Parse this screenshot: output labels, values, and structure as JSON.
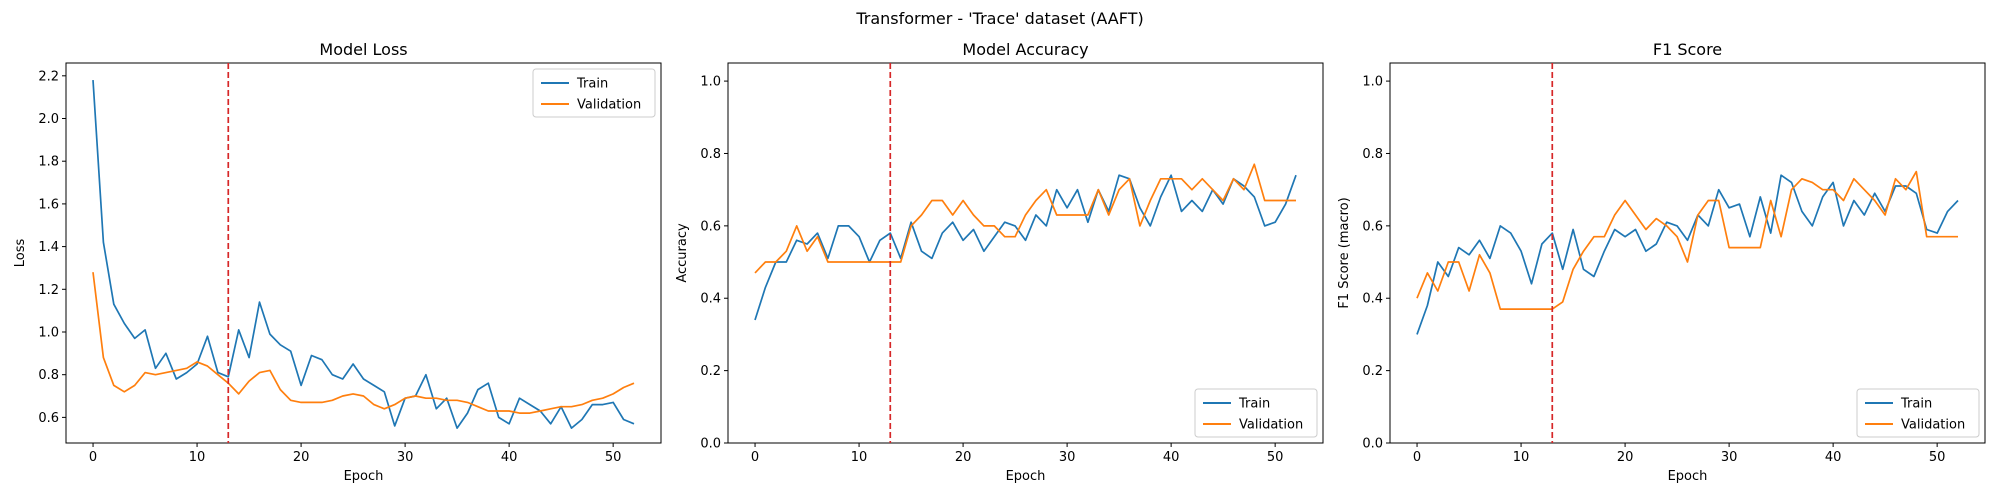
{
  "figure": {
    "suptitle": "Transformer - 'Trace' dataset (AAFT)"
  },
  "chart_data": [
    {
      "type": "line",
      "title": "Model Loss",
      "xlabel": "Epoch",
      "ylabel": "Loss",
      "xlim": [
        -2.6,
        54.6
      ],
      "ylim": [
        0.48,
        2.26
      ],
      "xticks": [
        0,
        10,
        20,
        30,
        40,
        50
      ],
      "yticks": [
        0.6,
        0.8,
        1.0,
        1.2,
        1.4,
        1.6,
        1.8,
        2.0,
        2.2
      ],
      "ytick_labels": [
        "0.6",
        "0.8",
        "1.0",
        "1.2",
        "1.4",
        "1.6",
        "1.8",
        "2.0",
        "2.2"
      ],
      "vline": {
        "x": 13,
        "color": "#d62728",
        "style": "dashed"
      },
      "legend": {
        "position": "upper right"
      },
      "series": [
        {
          "name": "Train",
          "color": "#1f77b4",
          "values": [
            2.18,
            1.42,
            1.13,
            1.04,
            0.97,
            1.01,
            0.83,
            0.9,
            0.78,
            0.81,
            0.85,
            0.98,
            0.81,
            0.79,
            1.01,
            0.88,
            1.14,
            0.99,
            0.94,
            0.91,
            0.75,
            0.89,
            0.87,
            0.8,
            0.78,
            0.85,
            0.78,
            0.75,
            0.72,
            0.56,
            0.69,
            0.7,
            0.8,
            0.64,
            0.69,
            0.55,
            0.62,
            0.73,
            0.76,
            0.6,
            0.57,
            0.69,
            0.66,
            0.63,
            0.57,
            0.65,
            0.55,
            0.59,
            0.66,
            0.66,
            0.67,
            0.59,
            0.57
          ]
        },
        {
          "name": "Validation",
          "color": "#ff7f0e",
          "values": [
            1.28,
            0.88,
            0.75,
            0.72,
            0.75,
            0.81,
            0.8,
            0.81,
            0.82,
            0.83,
            0.86,
            0.84,
            0.8,
            0.76,
            0.71,
            0.77,
            0.81,
            0.82,
            0.73,
            0.68,
            0.67,
            0.67,
            0.67,
            0.68,
            0.7,
            0.71,
            0.7,
            0.66,
            0.64,
            0.66,
            0.69,
            0.7,
            0.69,
            0.69,
            0.68,
            0.68,
            0.67,
            0.65,
            0.63,
            0.63,
            0.63,
            0.62,
            0.62,
            0.63,
            0.64,
            0.65,
            0.65,
            0.66,
            0.68,
            0.69,
            0.71,
            0.74,
            0.76
          ]
        }
      ]
    },
    {
      "type": "line",
      "title": "Model Accuracy",
      "xlabel": "Epoch",
      "ylabel": "Accuracy",
      "xlim": [
        -2.6,
        54.6
      ],
      "ylim": [
        0.0,
        1.05
      ],
      "xticks": [
        0,
        10,
        20,
        30,
        40,
        50
      ],
      "yticks": [
        0.0,
        0.2,
        0.4,
        0.6,
        0.8,
        1.0
      ],
      "ytick_labels": [
        "0.0",
        "0.2",
        "0.4",
        "0.6",
        "0.8",
        "1.0"
      ],
      "vline": {
        "x": 13,
        "color": "#d62728",
        "style": "dashed"
      },
      "legend": {
        "position": "lower right"
      },
      "series": [
        {
          "name": "Train",
          "color": "#1f77b4",
          "values": [
            0.34,
            0.43,
            0.5,
            0.5,
            0.56,
            0.55,
            0.58,
            0.51,
            0.6,
            0.6,
            0.57,
            0.5,
            0.56,
            0.58,
            0.51,
            0.61,
            0.53,
            0.51,
            0.58,
            0.61,
            0.56,
            0.59,
            0.53,
            0.57,
            0.61,
            0.6,
            0.56,
            0.63,
            0.6,
            0.7,
            0.65,
            0.7,
            0.61,
            0.7,
            0.64,
            0.74,
            0.73,
            0.65,
            0.6,
            0.68,
            0.74,
            0.64,
            0.67,
            0.64,
            0.7,
            0.66,
            0.73,
            0.71,
            0.68,
            0.6,
            0.61,
            0.66,
            0.74
          ]
        },
        {
          "name": "Validation",
          "color": "#ff7f0e",
          "values": [
            0.47,
            0.5,
            0.5,
            0.53,
            0.6,
            0.53,
            0.57,
            0.5,
            0.5,
            0.5,
            0.5,
            0.5,
            0.5,
            0.5,
            0.5,
            0.6,
            0.63,
            0.67,
            0.67,
            0.63,
            0.67,
            0.63,
            0.6,
            0.6,
            0.57,
            0.57,
            0.63,
            0.67,
            0.7,
            0.63,
            0.63,
            0.63,
            0.63,
            0.7,
            0.63,
            0.7,
            0.73,
            0.6,
            0.67,
            0.73,
            0.73,
            0.73,
            0.7,
            0.73,
            0.7,
            0.67,
            0.73,
            0.7,
            0.77,
            0.67,
            0.67,
            0.67,
            0.67
          ]
        }
      ]
    },
    {
      "type": "line",
      "title": "F1 Score",
      "xlabel": "Epoch",
      "ylabel": "F1 Score (macro)",
      "xlim": [
        -2.6,
        54.6
      ],
      "ylim": [
        0.0,
        1.05
      ],
      "xticks": [
        0,
        10,
        20,
        30,
        40,
        50
      ],
      "yticks": [
        0.0,
        0.2,
        0.4,
        0.6,
        0.8,
        1.0
      ],
      "ytick_labels": [
        "0.0",
        "0.2",
        "0.4",
        "0.6",
        "0.8",
        "1.0"
      ],
      "vline": {
        "x": 13,
        "color": "#d62728",
        "style": "dashed"
      },
      "legend": {
        "position": "lower right"
      },
      "series": [
        {
          "name": "Train",
          "color": "#1f77b4",
          "values": [
            0.3,
            0.38,
            0.5,
            0.46,
            0.54,
            0.52,
            0.56,
            0.51,
            0.6,
            0.58,
            0.53,
            0.44,
            0.55,
            0.58,
            0.48,
            0.59,
            0.48,
            0.46,
            0.53,
            0.59,
            0.57,
            0.59,
            0.53,
            0.55,
            0.61,
            0.6,
            0.56,
            0.63,
            0.6,
            0.7,
            0.65,
            0.66,
            0.57,
            0.68,
            0.58,
            0.74,
            0.72,
            0.64,
            0.6,
            0.68,
            0.72,
            0.6,
            0.67,
            0.63,
            0.69,
            0.64,
            0.71,
            0.71,
            0.69,
            0.59,
            0.58,
            0.64,
            0.67
          ]
        },
        {
          "name": "Validation",
          "color": "#ff7f0e",
          "values": [
            0.4,
            0.47,
            0.42,
            0.5,
            0.5,
            0.42,
            0.52,
            0.47,
            0.37,
            0.37,
            0.37,
            0.37,
            0.37,
            0.37,
            0.39,
            0.48,
            0.53,
            0.57,
            0.57,
            0.63,
            0.67,
            0.63,
            0.59,
            0.62,
            0.6,
            0.57,
            0.5,
            0.63,
            0.67,
            0.67,
            0.54,
            0.54,
            0.54,
            0.54,
            0.67,
            0.57,
            0.7,
            0.73,
            0.72,
            0.7,
            0.7,
            0.67,
            0.73,
            0.7,
            0.67,
            0.63,
            0.73,
            0.7,
            0.75,
            0.57,
            0.57,
            0.57,
            0.57
          ]
        }
      ]
    }
  ]
}
